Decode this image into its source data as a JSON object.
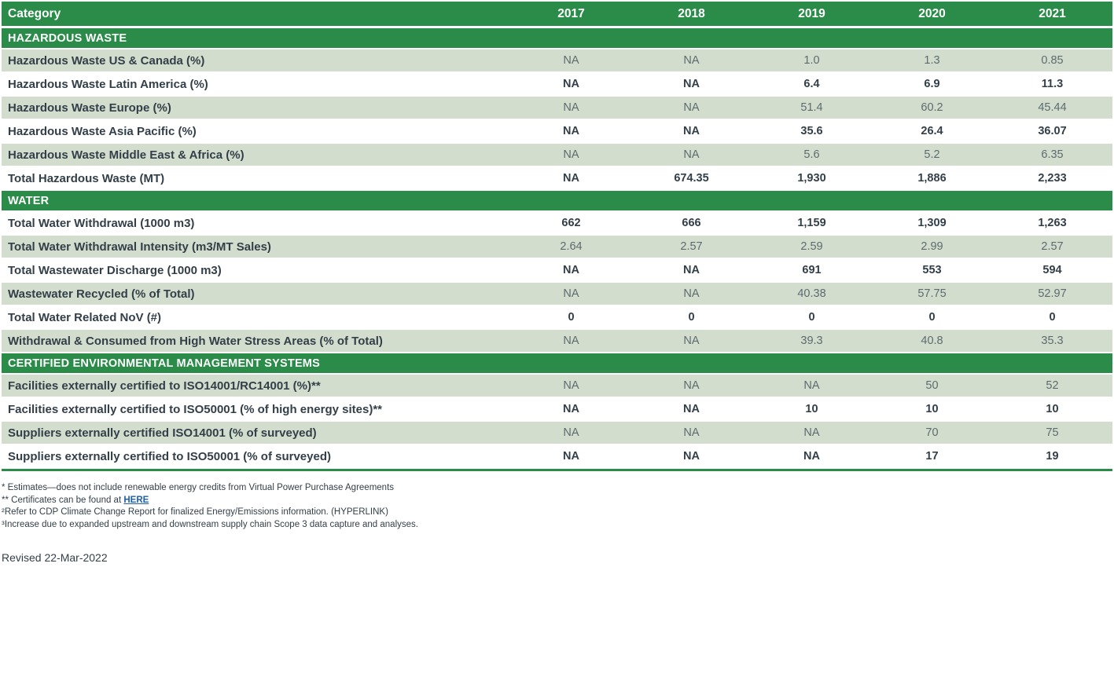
{
  "colors": {
    "header_green": "#2a8c48",
    "row_shade": "#d3ddcd",
    "label_text": "#333f48",
    "muted_value_text": "#5d6b70",
    "link_blue": "#2060a5",
    "header_text": "#ffffff"
  },
  "table": {
    "header": [
      "Category",
      "2017",
      "2018",
      "2019",
      "2020",
      "2021"
    ],
    "sections": [
      {
        "title": "HAZARDOUS WASTE",
        "rows": [
          {
            "label": "Hazardous Waste US & Canada (%)",
            "shaded": true,
            "values": [
              "NA",
              "NA",
              "1.0",
              "1.3",
              "0.85"
            ]
          },
          {
            "label": "Hazardous Waste Latin America (%)",
            "shaded": false,
            "values": [
              "NA",
              "NA",
              "6.4",
              "6.9",
              "11.3"
            ]
          },
          {
            "label": "Hazardous Waste Europe (%)",
            "shaded": true,
            "values": [
              "NA",
              "NA",
              "51.4",
              "60.2",
              "45.44"
            ]
          },
          {
            "label": "Hazardous Waste Asia Pacific (%)",
            "shaded": false,
            "values": [
              "NA",
              "NA",
              "35.6",
              "26.4",
              "36.07"
            ]
          },
          {
            "label": "Hazardous Waste Middle East & Africa (%)",
            "shaded": true,
            "values": [
              "NA",
              "NA",
              "5.6",
              "5.2",
              "6.35"
            ]
          },
          {
            "label": "Total Hazardous Waste (MT)",
            "shaded": false,
            "values": [
              "NA",
              "674.35",
              "1,930",
              "1,886",
              "2,233"
            ]
          }
        ]
      },
      {
        "title": "WATER",
        "rows": [
          {
            "label": "Total Water Withdrawal (1000 m3)",
            "shaded": false,
            "values": [
              "662",
              "666",
              "1,159",
              "1,309",
              "1,263"
            ]
          },
          {
            "label": "Total Water Withdrawal Intensity (m3/MT Sales)",
            "shaded": true,
            "values": [
              "2.64",
              "2.57",
              "2.59",
              "2.99",
              "2.57"
            ]
          },
          {
            "label": "Total Wastewater Discharge (1000 m3)",
            "shaded": false,
            "values": [
              "NA",
              "NA",
              "691",
              "553",
              "594"
            ]
          },
          {
            "label": "Wastewater Recycled (% of Total)",
            "shaded": true,
            "values": [
              "NA",
              "NA",
              "40.38",
              "57.75",
              "52.97"
            ]
          },
          {
            "label": "Total Water Related NoV (#)",
            "shaded": false,
            "values": [
              "0",
              "0",
              "0",
              "0",
              "0"
            ]
          },
          {
            "label": "Withdrawal & Consumed from High Water Stress Areas (% of Total)",
            "shaded": true,
            "values": [
              "NA",
              "NA",
              "39.3",
              "40.8",
              "35.3"
            ]
          }
        ]
      },
      {
        "title": "CERTIFIED ENVIRONMENTAL MANAGEMENT SYSTEMS",
        "rows": [
          {
            "label": "Facilities externally certified to ISO14001/RC14001 (%)**",
            "shaded": true,
            "values": [
              "NA",
              "NA",
              "NA",
              "50",
              "52"
            ]
          },
          {
            "label": "Facilities externally certified to ISO50001 (% of high energy sites)**",
            "shaded": false,
            "values": [
              "NA",
              "NA",
              "10",
              "10",
              "10"
            ]
          },
          {
            "label": "Suppliers externally certified ISO14001 (% of surveyed)",
            "shaded": true,
            "values": [
              "NA",
              "NA",
              "NA",
              "70",
              "75"
            ]
          },
          {
            "label": "Suppliers externally certified to ISO50001 (% of surveyed)",
            "shaded": false,
            "values": [
              "NA",
              "NA",
              "NA",
              "17",
              "19"
            ]
          }
        ]
      }
    ]
  },
  "footnotes": [
    {
      "text": "* Estimates—does not include renewable energy credits from Virtual Power Purchase Agreements"
    },
    {
      "text": "** Certificates can be found at ",
      "link": "HERE"
    },
    {
      "text": "²Refer to CDP Climate Change Report for finalized Energy/Emissions information. (HYPERLINK)"
    },
    {
      "text": "³Increase due to expanded upstream and downstream supply chain Scope 3 data capture and analyses."
    }
  ],
  "revised_date": "Revised 22-Mar-2022"
}
